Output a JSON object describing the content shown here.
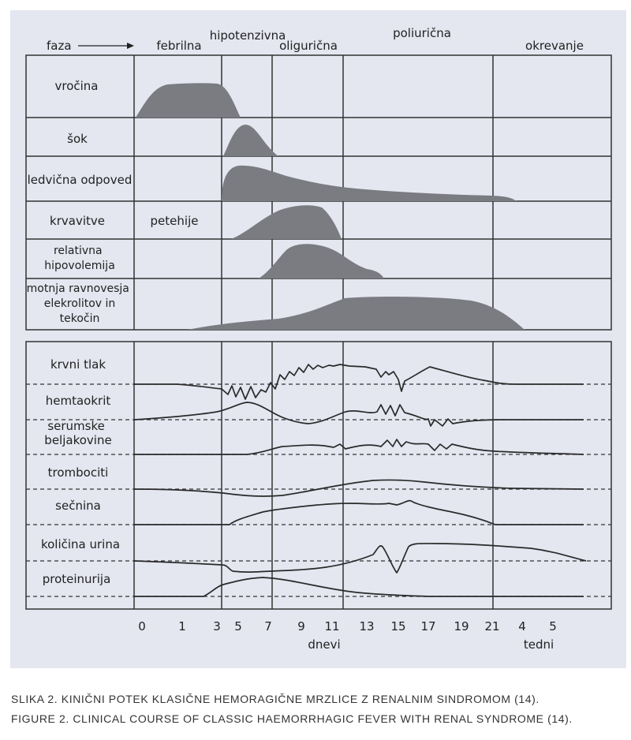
{
  "phase_header": {
    "faza": "faza",
    "phases": [
      "febrilna",
      "hipotenzivna",
      "oligurična",
      "poliurična",
      "okrevanje"
    ]
  },
  "symptom_rows": [
    "vročina",
    "šok",
    "ledvična odpoved",
    "krvavitve",
    "relativna hipovolemija",
    "motnja ravnovesja elekrolitov in tekočin"
  ],
  "annotation": "petehije",
  "lab_rows": [
    "krvni tlak",
    "hemtaokrit",
    "serumske beljakovine",
    "trombociti",
    "sečnina",
    "količina urina",
    "proteinurija"
  ],
  "x_ticks_days": [
    "0",
    "1",
    "3",
    "5",
    "7",
    "9",
    "11",
    "13",
    "15",
    "17",
    "19",
    "21"
  ],
  "x_ticks_weeks": [
    "4",
    "5"
  ],
  "x_label_days": "dnevi",
  "x_label_weeks": "tedni",
  "colors": {
    "panel": "#e4e6f0",
    "fill": "#7a7c82",
    "line": "#2a2a2a"
  },
  "caption": {
    "slovene": "SLIKA 2. KINIČNI POTEK KLASIČNE HEMORAGIČNE MRZLICE Z RENALNIM SINDROMOM (14).",
    "english": "FIGURE 2. CLINICAL COURSE OF CLASSIC HAEMORRHAGIC FEVER WITH RENAL SYNDROME (14)."
  }
}
